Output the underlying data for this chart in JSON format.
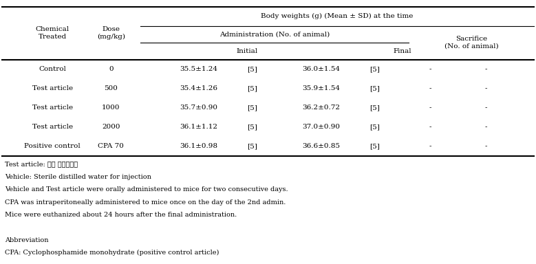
{
  "title": "Body weights (g) (Mean ± SD) at the time",
  "col_headers": {
    "chem": "Chemical\nTreated",
    "dose": "Dose\n(mg/kg)",
    "admin": "Administration (No. of animal)",
    "initial": "Initial",
    "final": "Final",
    "sacrifice": "Sacrifice\n(No. of animal)"
  },
  "rows": [
    {
      "chem": "Control",
      "dose": "0",
      "init_val": "35.5±1.24",
      "init_n": "[5]",
      "final_val": "36.0±1.54",
      "final_n": "[5]",
      "sac1": "-",
      "sac2": "-"
    },
    {
      "chem": "Test article",
      "dose": "500",
      "init_val": "35.4±1.26",
      "init_n": "[5]",
      "final_val": "35.9±1.54",
      "final_n": "[5]",
      "sac1": "-",
      "sac2": "-"
    },
    {
      "chem": "Test article",
      "dose": "1000",
      "init_val": "35.7±0.90",
      "init_n": "[5]",
      "final_val": "36.2±0.72",
      "final_n": "[5]",
      "sac1": "-",
      "sac2": "-"
    },
    {
      "chem": "Test article",
      "dose": "2000",
      "init_val": "36.1±1.12",
      "init_n": "[5]",
      "final_val": "37.0±0.90",
      "final_n": "[5]",
      "sac1": "-",
      "sac2": "-"
    },
    {
      "chem": "Positive control",
      "dose": "CPA 70",
      "init_val": "36.1±0.98",
      "init_n": "[5]",
      "final_val": "36.6±0.85",
      "final_n": "[5]",
      "sac1": "-",
      "sac2": "-"
    }
  ],
  "footnotes": [
    "Test article: 세신 열수추출물",
    "Vehicle: Sterile distilled water for injection",
    "Vehicle and Test article were orally administered to mice for two consecutive days.",
    "CPA was intraperitoneally administered to mice once on the day of the 2nd admin.",
    "Mice were euthanized about 24 hours after the final administration.",
    "",
    "Abbreviation",
    "CPA: Cyclophosphamide monohydrate (positive control article)"
  ],
  "font_size": 7.5,
  "header_font_size": 7.5
}
